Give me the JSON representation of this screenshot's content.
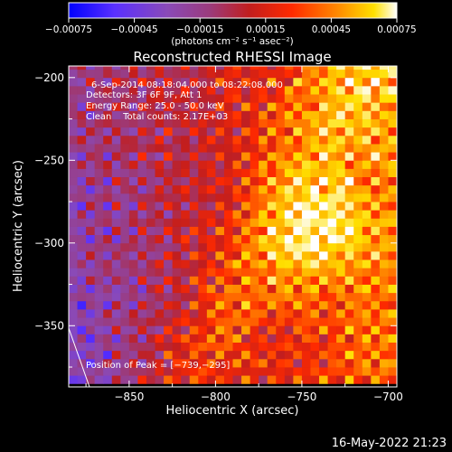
{
  "chart_data": {
    "type": "heatmap",
    "title": "Reconstructed RHESSI Image",
    "xlabel": "Heliocentric X (arcsec)",
    "ylabel": "Heliocentric Y (arcsec)",
    "xlim": [
      -885,
      -695
    ],
    "ylim": [
      -387,
      -193
    ],
    "x_ticks": [
      -850,
      -800,
      -750,
      -700
    ],
    "x_tick_labels": [
      "−850",
      "−800",
      "−750",
      "−700"
    ],
    "y_ticks": [
      -200,
      -250,
      -300,
      -350
    ],
    "y_tick_labels": [
      "−200",
      "−250",
      "−300",
      "−350"
    ],
    "colorbar": {
      "min": -0.00075,
      "max": 0.00075,
      "ticks": [
        -0.00075,
        -0.00045,
        -0.00015,
        0.00015,
        0.00045,
        0.00075
      ],
      "tick_labels": [
        "−0.00075",
        "−0.00045",
        "−0.00015",
        "0.00015",
        "0.00045",
        "0.00075"
      ],
      "unit_label": "(photons cm⁻² s⁻¹ asec⁻²)",
      "colormap": [
        "#0000ff",
        "#5a30ff",
        "#8a4ab8",
        "#9b3b7c",
        "#c21e1e",
        "#ff2a00",
        "#ff8a00",
        "#ffe000",
        "#ffffff"
      ]
    },
    "annotations": [
      "6-Sep-2014 08:18:04.000 to 08:22:08.000",
      "Detectors: 3F 6F 9F, Att 1",
      "Energy Range: 25.0 - 50.0 keV",
      "Clean    Total counts: 2.17E+03"
    ],
    "peak": {
      "x": -739,
      "y": -295,
      "label": "Position of Peak = [−739,−295]"
    },
    "footer_date": "16-May-2022 21:23",
    "grid": false,
    "legend": "none"
  }
}
